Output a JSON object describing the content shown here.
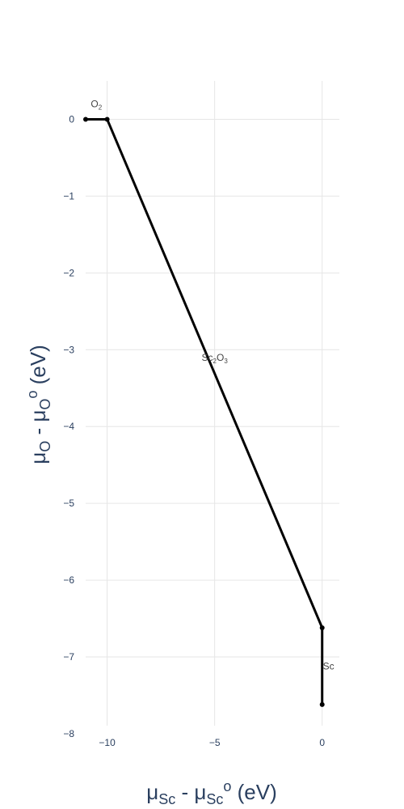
{
  "chart_data": {
    "type": "line",
    "x_title": {
      "main": "μ",
      "sub1": "Sc",
      "mid": " - μ",
      "sub2": "Sc",
      "sup": "o",
      "end": " (eV)"
    },
    "y_title": {
      "main": "μ",
      "sub1": "O",
      "mid": " - μ",
      "sub2": "O",
      "sup": "o",
      "end": " (eV)"
    },
    "xlim": [
      -11.0,
      0.8
    ],
    "ylim": [
      -8.0,
      0.5
    ],
    "x_ticks": [
      -10,
      -5,
      0
    ],
    "x_tick_labels": [
      "−10",
      "−5",
      "0"
    ],
    "y_ticks": [
      0,
      -1,
      -2,
      -3,
      -4,
      -5,
      -6,
      -7,
      -8
    ],
    "y_tick_labels": [
      "0",
      "−1",
      "−2",
      "−3",
      "−4",
      "−5",
      "−6",
      "−7",
      "−8"
    ],
    "grid": true,
    "line_color": "#000000",
    "segments": [
      {
        "name": "O2-boundary",
        "points": [
          [
            -11.0,
            0.0
          ],
          [
            -10.0,
            0.0
          ]
        ]
      },
      {
        "name": "Sc2O3-boundary",
        "points": [
          [
            -10.0,
            0.0
          ],
          [
            0.0,
            -6.62
          ]
        ]
      },
      {
        "name": "Sc-boundary",
        "points": [
          [
            0.0,
            -6.62
          ],
          [
            0.0,
            -7.62
          ]
        ]
      }
    ],
    "annotations": [
      {
        "name": "annotation-o2",
        "base": "O",
        "sub": "2",
        "tail": "",
        "tail_sub": "",
        "x": -10.5,
        "y": 0.2
      },
      {
        "name": "annotation-sc2o3",
        "base": "Sc",
        "sub": "2",
        "tail": "O",
        "tail_sub": "3",
        "x": -5.0,
        "y": -3.1
      },
      {
        "name": "annotation-sc",
        "base": "Sc",
        "sub": "",
        "tail": "",
        "tail_sub": "",
        "x": 0.3,
        "y": -7.12
      }
    ]
  }
}
